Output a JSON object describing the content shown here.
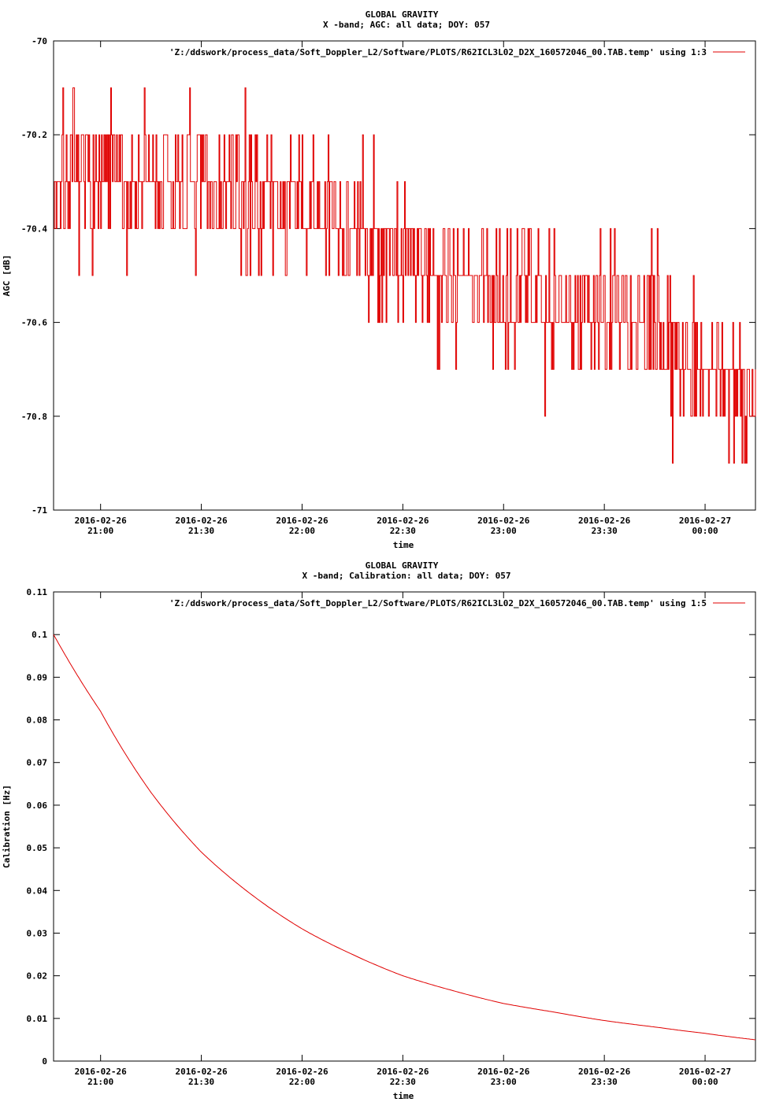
{
  "chart_data": [
    {
      "type": "line",
      "title": "GLOBAL GRAVITY",
      "subtitle": "X -band; AGC: all data; DOY: 057",
      "xlabel": "time",
      "ylabel": "AGC [dB]",
      "legend": "'Z:/ddswork/process_data/Soft_Doppler_L2/Software/PLOTS/R62ICL3L02_D2X_160572046_00.TAB.temp' using 1:3",
      "legend_position": "top-right",
      "series_color": "#e00000",
      "grid": false,
      "xlim": [
        "2016-02-26 20:46",
        "2016-02-27 00:15"
      ],
      "ylim": [
        -71,
        -70
      ],
      "yticks": [
        {
          "value": -70,
          "label": "-70"
        },
        {
          "value": -70.2,
          "label": "-70.2"
        },
        {
          "value": -70.4,
          "label": "-70.4"
        },
        {
          "value": -70.6,
          "label": "-70.6"
        },
        {
          "value": -70.8,
          "label": "-70.8"
        },
        {
          "value": -71,
          "label": "-71"
        }
      ],
      "xticks": [
        {
          "value": "2016-02-26 21:00",
          "date": "2016-02-26",
          "time": "21:00"
        },
        {
          "value": "2016-02-26 21:30",
          "date": "2016-02-26",
          "time": "21:30"
        },
        {
          "value": "2016-02-26 22:00",
          "date": "2016-02-26",
          "time": "22:00"
        },
        {
          "value": "2016-02-26 22:30",
          "date": "2016-02-26",
          "time": "22:30"
        },
        {
          "value": "2016-02-26 23:00",
          "date": "2016-02-26",
          "time": "23:00"
        },
        {
          "value": "2016-02-26 23:30",
          "date": "2016-02-26",
          "time": "23:30"
        },
        {
          "value": "2016-02-27 00:00",
          "date": "2016-02-27",
          "time": "00:00"
        }
      ],
      "series": [
        {
          "trend": [
            {
              "x": "2016-02-26 20:46",
              "y": -70.3
            },
            {
              "x": "2016-02-26 21:15",
              "y": -70.3
            },
            {
              "x": "2016-02-26 21:45",
              "y": -70.33
            },
            {
              "x": "2016-02-26 22:15",
              "y": -70.4
            },
            {
              "x": "2016-02-26 22:45",
              "y": -70.5
            },
            {
              "x": "2016-02-26 23:15",
              "y": -70.55
            },
            {
              "x": "2016-02-26 23:45",
              "y": -70.62
            },
            {
              "x": "2016-02-27 00:00",
              "y": -70.68
            },
            {
              "x": "2016-02-27 00:15",
              "y": -70.78
            }
          ],
          "quantization": 0.1,
          "noise_sd": 0.1,
          "seed": 7
        }
      ]
    },
    {
      "type": "line",
      "title": "GLOBAL GRAVITY",
      "subtitle": "X -band; Calibration: all data; DOY: 057",
      "xlabel": "time",
      "ylabel": "Calibration [Hz]",
      "legend": "'Z:/ddswork/process_data/Soft_Doppler_L2/Software/PLOTS/R62ICL3L02_D2X_160572046_00.TAB.temp' using 1:5",
      "legend_position": "top-right",
      "series_color": "#e00000",
      "grid": false,
      "xlim": [
        "2016-02-26 20:46",
        "2016-02-27 00:15"
      ],
      "ylim": [
        0,
        0.11
      ],
      "yticks": [
        {
          "value": 0,
          "label": "0"
        },
        {
          "value": 0.01,
          "label": "0.01"
        },
        {
          "value": 0.02,
          "label": "0.02"
        },
        {
          "value": 0.03,
          "label": "0.03"
        },
        {
          "value": 0.04,
          "label": "0.04"
        },
        {
          "value": 0.05,
          "label": "0.05"
        },
        {
          "value": 0.06,
          "label": "0.06"
        },
        {
          "value": 0.07,
          "label": "0.07"
        },
        {
          "value": 0.08,
          "label": "0.08"
        },
        {
          "value": 0.09,
          "label": "0.09"
        },
        {
          "value": 0.1,
          "label": "0.1"
        },
        {
          "value": 0.11,
          "label": "0.11"
        }
      ],
      "xticks": [
        {
          "value": "2016-02-26 21:00",
          "date": "2016-02-26",
          "time": "21:00"
        },
        {
          "value": "2016-02-26 21:30",
          "date": "2016-02-26",
          "time": "21:30"
        },
        {
          "value": "2016-02-26 22:00",
          "date": "2016-02-26",
          "time": "22:00"
        },
        {
          "value": "2016-02-26 22:30",
          "date": "2016-02-26",
          "time": "22:30"
        },
        {
          "value": "2016-02-26 23:00",
          "date": "2016-02-26",
          "time": "23:00"
        },
        {
          "value": "2016-02-26 23:30",
          "date": "2016-02-26",
          "time": "23:30"
        },
        {
          "value": "2016-02-27 00:00",
          "date": "2016-02-27",
          "time": "00:00"
        }
      ],
      "series": [
        {
          "points": [
            {
              "x": "2016-02-26 20:46",
              "y": 0.1
            },
            {
              "x": "2016-02-26 21:00",
              "y": 0.082
            },
            {
              "x": "2016-02-26 21:15",
              "y": 0.063
            },
            {
              "x": "2016-02-26 21:30",
              "y": 0.049
            },
            {
              "x": "2016-02-26 21:45",
              "y": 0.039
            },
            {
              "x": "2016-02-26 22:00",
              "y": 0.031
            },
            {
              "x": "2016-02-26 22:15",
              "y": 0.025
            },
            {
              "x": "2016-02-26 22:30",
              "y": 0.02
            },
            {
              "x": "2016-02-26 22:45",
              "y": 0.0165
            },
            {
              "x": "2016-02-26 23:00",
              "y": 0.0135
            },
            {
              "x": "2016-02-26 23:15",
              "y": 0.0115
            },
            {
              "x": "2016-02-26 23:30",
              "y": 0.0095
            },
            {
              "x": "2016-02-26 23:45",
              "y": 0.008
            },
            {
              "x": "2016-02-27 00:00",
              "y": 0.0065
            },
            {
              "x": "2016-02-27 00:15",
              "y": 0.005
            }
          ]
        }
      ]
    }
  ]
}
